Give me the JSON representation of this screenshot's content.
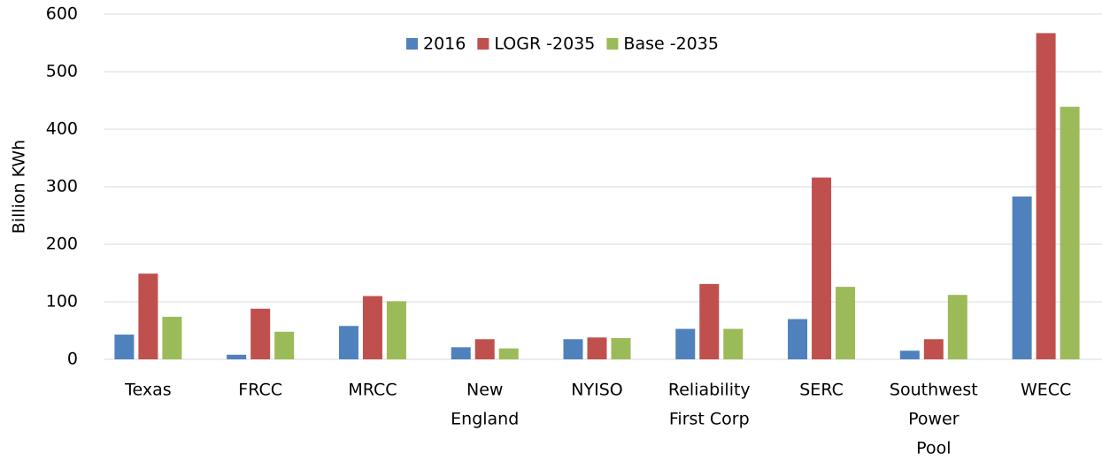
{
  "chart_data": {
    "type": "bar",
    "y_label": "Billion KWh",
    "categories": [
      [
        "Texas"
      ],
      [
        "FRCC"
      ],
      [
        "MRCC"
      ],
      [
        "New",
        "England"
      ],
      [
        "NYISO"
      ],
      [
        "Reliability",
        "First Corp"
      ],
      [
        "SERC"
      ],
      [
        "Southwest",
        "Power",
        "Pool"
      ],
      [
        "WECC"
      ]
    ],
    "series": [
      {
        "name": "2016",
        "color": "#4f81bd",
        "values": [
          43,
          8,
          58,
          21,
          35,
          53,
          70,
          15,
          283
        ]
      },
      {
        "name": "LOGR -2035",
        "color": "#c0504d",
        "values": [
          149,
          88,
          110,
          35,
          38,
          131,
          316,
          35,
          567
        ]
      },
      {
        "name": "Base -2035",
        "color": "#9bbb59",
        "values": [
          74,
          48,
          101,
          19,
          37,
          53,
          126,
          112,
          439
        ]
      }
    ],
    "ylim": [
      0,
      600
    ],
    "yticks": [
      0,
      100,
      200,
      300,
      400,
      500,
      600
    ],
    "grid": true,
    "legend": "top"
  }
}
